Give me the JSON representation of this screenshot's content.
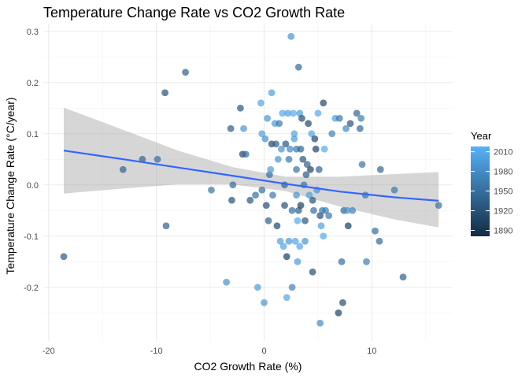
{
  "chart_data": {
    "type": "scatter",
    "title": "Temperature Change Rate vs CO2 Growth Rate",
    "xlabel": "CO2 Growth Rate (%)",
    "ylabel": "Temperature Change Rate (°C/year)",
    "xlim": [
      -20.5,
      17.5
    ],
    "ylim": [
      -0.305,
      0.315
    ],
    "x_ticks": [
      -20,
      -10,
      0,
      10
    ],
    "x_tick_labels": [
      "-20",
      "-10",
      "0",
      "10"
    ],
    "y_ticks": [
      -0.2,
      -0.1,
      0.0,
      0.1,
      0.2,
      0.3
    ],
    "y_tick_labels": [
      "-0.2",
      "-0.1",
      "0.0",
      "0.1",
      "0.2",
      "0.3"
    ],
    "grid": true,
    "legend": {
      "title": "Year",
      "placement": "right",
      "type": "colorbar",
      "breaks": [
        2010,
        1980,
        1950,
        1920,
        1890
      ],
      "range": [
        1881,
        2018
      ],
      "color_low": "#132B43",
      "color_high": "#56B1F7"
    },
    "trend": {
      "method": "linear",
      "color": "#3366FF",
      "band_color": "#999999",
      "x": [
        -18.6,
        -13,
        -8,
        -3,
        2,
        7,
        12,
        16.2
      ],
      "y": [
        0.067,
        0.05,
        0.034,
        0.018,
        0.002,
        -0.013,
        -0.024,
        -0.031
      ],
      "lower": [
        -0.017,
        -0.007,
        0.001,
        0.001,
        -0.012,
        -0.042,
        -0.067,
        -0.083
      ],
      "upper": [
        0.151,
        0.107,
        0.067,
        0.035,
        0.016,
        0.016,
        0.021,
        0.025
      ]
    },
    "points": [
      {
        "x": -18.6,
        "y": -0.14,
        "year": 1930
      },
      {
        "x": -13.1,
        "y": 0.03,
        "year": 1940
      },
      {
        "x": -11.3,
        "y": 0.05,
        "year": 1940
      },
      {
        "x": -9.9,
        "y": 0.05,
        "year": 1950
      },
      {
        "x": -9.2,
        "y": 0.18,
        "year": 1920
      },
      {
        "x": -9.1,
        "y": -0.08,
        "year": 1935
      },
      {
        "x": -7.3,
        "y": 0.22,
        "year": 1935
      },
      {
        "x": -4.9,
        "y": -0.01,
        "year": 1955
      },
      {
        "x": -3.5,
        "y": -0.19,
        "year": 1985
      },
      {
        "x": -3.1,
        "y": 0.11,
        "year": 1930
      },
      {
        "x": -3.0,
        "y": -0.03,
        "year": 1920
      },
      {
        "x": -2.9,
        "y": 0.0,
        "year": 1945
      },
      {
        "x": -2.2,
        "y": 0.15,
        "year": 1925
      },
      {
        "x": -2.0,
        "y": 0.06,
        "year": 1910
      },
      {
        "x": -1.9,
        "y": 0.11,
        "year": 1990
      },
      {
        "x": -1.7,
        "y": 0.06,
        "year": 1950
      },
      {
        "x": -1.3,
        "y": -0.03,
        "year": 1925
      },
      {
        "x": -0.8,
        "y": -0.02,
        "year": 1950
      },
      {
        "x": -0.6,
        "y": -0.2,
        "year": 1995
      },
      {
        "x": -0.2,
        "y": 0.1,
        "year": 2000
      },
      {
        "x": -0.3,
        "y": 0.16,
        "year": 2005
      },
      {
        "x": -0.2,
        "y": -0.01,
        "year": 1950
      },
      {
        "x": 0.0,
        "y": -0.23,
        "year": 1990
      },
      {
        "x": 0.1,
        "y": 0.09,
        "year": 1985
      },
      {
        "x": 0.3,
        "y": 0.13,
        "year": 1990
      },
      {
        "x": 0.2,
        "y": -0.04,
        "year": 1915
      },
      {
        "x": 0.4,
        "y": -0.07,
        "year": 1935
      },
      {
        "x": 0.5,
        "y": 0.02,
        "year": 1950
      },
      {
        "x": 0.6,
        "y": 0.03,
        "year": 1995
      },
      {
        "x": 0.7,
        "y": 0.18,
        "year": 2000
      },
      {
        "x": 0.7,
        "y": 0.08,
        "year": 1915
      },
      {
        "x": 0.8,
        "y": -0.02,
        "year": 1960
      },
      {
        "x": 1.0,
        "y": 0.12,
        "year": 1995
      },
      {
        "x": 1.1,
        "y": 0.08,
        "year": 1935
      },
      {
        "x": 1.2,
        "y": -0.08,
        "year": 1910
      },
      {
        "x": 1.3,
        "y": 0.05,
        "year": 1990
      },
      {
        "x": 1.4,
        "y": 0.12,
        "year": 1960
      },
      {
        "x": 1.5,
        "y": -0.11,
        "year": 2000
      },
      {
        "x": 1.6,
        "y": 0.07,
        "year": 1985
      },
      {
        "x": 1.7,
        "y": 0.14,
        "year": 2010
      },
      {
        "x": 1.8,
        "y": -0.12,
        "year": 2005
      },
      {
        "x": 1.9,
        "y": 0.0,
        "year": 1940
      },
      {
        "x": 1.9,
        "y": -0.04,
        "year": 1920
      },
      {
        "x": 2.0,
        "y": 0.08,
        "year": 1925
      },
      {
        "x": 2.1,
        "y": -0.22,
        "year": 2005
      },
      {
        "x": 2.1,
        "y": -0.14,
        "year": 1900
      },
      {
        "x": 2.2,
        "y": 0.14,
        "year": 2000
      },
      {
        "x": 2.3,
        "y": 0.05,
        "year": 1960
      },
      {
        "x": 2.3,
        "y": -0.11,
        "year": 1990
      },
      {
        "x": 2.4,
        "y": 0.07,
        "year": 1975
      },
      {
        "x": 2.5,
        "y": 0.29,
        "year": 1990
      },
      {
        "x": 2.6,
        "y": -0.05,
        "year": 1950
      },
      {
        "x": 2.6,
        "y": -0.2,
        "year": 1970
      },
      {
        "x": 2.7,
        "y": 0.14,
        "year": 2010
      },
      {
        "x": 2.8,
        "y": 0.1,
        "year": 2005
      },
      {
        "x": 2.8,
        "y": 0.09,
        "year": 1995
      },
      {
        "x": 2.9,
        "y": -0.11,
        "year": 2005
      },
      {
        "x": 3.0,
        "y": 0.07,
        "year": 1960
      },
      {
        "x": 3.0,
        "y": -0.02,
        "year": 1985
      },
      {
        "x": 3.0,
        "y": 0.03,
        "year": 1955
      },
      {
        "x": 3.1,
        "y": -0.15,
        "year": 1995
      },
      {
        "x": 3.1,
        "y": -0.07,
        "year": 2010
      },
      {
        "x": 3.2,
        "y": 0.23,
        "year": 1945
      },
      {
        "x": 3.2,
        "y": -0.05,
        "year": 1935
      },
      {
        "x": 3.3,
        "y": -0.12,
        "year": 2008
      },
      {
        "x": 3.3,
        "y": 0.14,
        "year": 1995
      },
      {
        "x": 3.4,
        "y": 0.07,
        "year": 1940
      },
      {
        "x": 3.4,
        "y": -0.04,
        "year": 1900
      },
      {
        "x": 3.5,
        "y": 0.13,
        "year": 1915
      },
      {
        "x": 3.6,
        "y": 0.05,
        "year": 1925
      },
      {
        "x": 3.7,
        "y": 0.0,
        "year": 1955
      },
      {
        "x": 3.8,
        "y": -0.07,
        "year": 1925
      },
      {
        "x": 3.8,
        "y": -0.11,
        "year": 1990
      },
      {
        "x": 3.9,
        "y": 0.02,
        "year": 1930
      },
      {
        "x": 4.0,
        "y": 0.04,
        "year": 1935
      },
      {
        "x": 4.1,
        "y": 0.12,
        "year": 1910
      },
      {
        "x": 4.2,
        "y": -0.02,
        "year": 2000
      },
      {
        "x": 4.3,
        "y": 0.03,
        "year": 1905
      },
      {
        "x": 4.4,
        "y": 0.1,
        "year": 2005
      },
      {
        "x": 4.5,
        "y": -0.03,
        "year": 1920
      },
      {
        "x": 4.5,
        "y": -0.17,
        "year": 1915
      },
      {
        "x": 4.6,
        "y": -0.05,
        "year": 1950
      },
      {
        "x": 4.7,
        "y": 0.09,
        "year": 1910
      },
      {
        "x": 4.8,
        "y": 0.07,
        "year": 1905
      },
      {
        "x": 4.9,
        "y": -0.01,
        "year": 1990
      },
      {
        "x": 5.0,
        "y": 0.14,
        "year": 2010
      },
      {
        "x": 5.1,
        "y": 0.03,
        "year": 1940
      },
      {
        "x": 5.2,
        "y": -0.06,
        "year": 1915
      },
      {
        "x": 5.2,
        "y": -0.27,
        "year": 1980
      },
      {
        "x": 5.3,
        "y": -0.08,
        "year": 2000
      },
      {
        "x": 5.4,
        "y": -0.05,
        "year": 1960
      },
      {
        "x": 5.5,
        "y": 0.16,
        "year": 1910
      },
      {
        "x": 5.5,
        "y": -0.1,
        "year": 2010
      },
      {
        "x": 5.6,
        "y": 0.07,
        "year": 2010
      },
      {
        "x": 5.7,
        "y": -0.05,
        "year": 1965
      },
      {
        "x": 6.0,
        "y": -0.06,
        "year": 1960
      },
      {
        "x": 6.3,
        "y": 0.1,
        "year": 1970
      },
      {
        "x": 6.6,
        "y": 0.13,
        "year": 1995
      },
      {
        "x": 6.9,
        "y": -0.25,
        "year": 1905
      },
      {
        "x": 7.0,
        "y": 0.13,
        "year": 1960
      },
      {
        "x": 7.2,
        "y": -0.15,
        "year": 1950
      },
      {
        "x": 7.4,
        "y": -0.05,
        "year": 1940
      },
      {
        "x": 7.3,
        "y": -0.23,
        "year": 1915
      },
      {
        "x": 7.6,
        "y": 0.11,
        "year": 1975
      },
      {
        "x": 7.7,
        "y": -0.05,
        "year": 1985
      },
      {
        "x": 7.8,
        "y": -0.08,
        "year": 1900
      },
      {
        "x": 8.0,
        "y": 0.12,
        "year": 1920
      },
      {
        "x": 8.2,
        "y": -0.05,
        "year": 1970
      },
      {
        "x": 8.6,
        "y": 0.14,
        "year": 1940
      },
      {
        "x": 8.9,
        "y": 0.11,
        "year": 1945
      },
      {
        "x": 9.0,
        "y": 0.13,
        "year": 1965
      },
      {
        "x": 9.1,
        "y": 0.04,
        "year": 1955
      },
      {
        "x": 9.4,
        "y": -0.02,
        "year": 1960
      },
      {
        "x": 9.5,
        "y": -0.15,
        "year": 1965
      },
      {
        "x": 10.3,
        "y": -0.09,
        "year": 1950
      },
      {
        "x": 10.7,
        "y": -0.11,
        "year": 1945
      },
      {
        "x": 10.8,
        "y": 0.03,
        "year": 1940
      },
      {
        "x": 12.1,
        "y": -0.01,
        "year": 1960
      },
      {
        "x": 12.9,
        "y": -0.18,
        "year": 1935
      },
      {
        "x": 16.2,
        "y": -0.04,
        "year": 1950
      }
    ]
  }
}
